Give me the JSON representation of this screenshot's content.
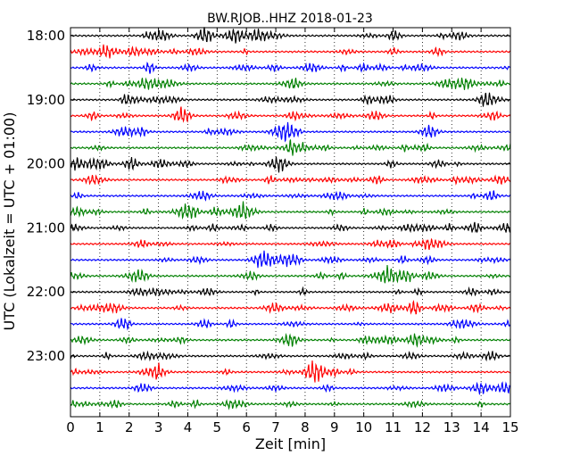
{
  "chart_data": {
    "type": "line",
    "title": "BW.RJOB..HHZ 2018-01-23",
    "xlabel": "Zeit  [min]",
    "ylabel": "UTC (Lokalzeit = UTC + 01:00)",
    "xlim": [
      0,
      15
    ],
    "x_ticks": [
      "0",
      "1",
      "2",
      "3",
      "4",
      "5",
      "6",
      "7",
      "8",
      "9",
      "10",
      "11",
      "12",
      "13",
      "14",
      "15"
    ],
    "y_ticks": [
      "18:00",
      "19:00",
      "20:00",
      "21:00",
      "22:00",
      "23:00"
    ],
    "grid": true,
    "trace_interval_minutes": 15,
    "trace_colors": [
      "#000000",
      "#ff0000",
      "#0000ff",
      "#008000"
    ],
    "traces_count": 24
  }
}
